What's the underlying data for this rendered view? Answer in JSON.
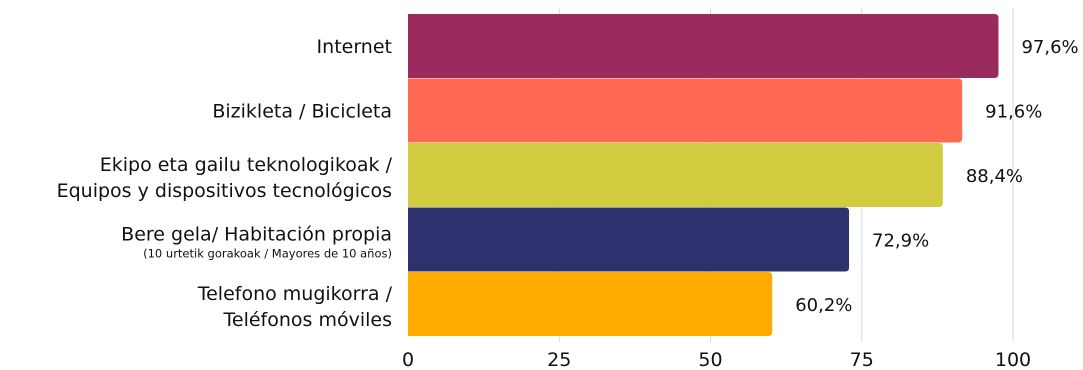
{
  "chart_data": {
    "type": "bar",
    "orientation": "horizontal",
    "categories": [
      [
        "Internet"
      ],
      [
        "Bizikleta / Bicicleta"
      ],
      [
        "Ekipo eta gailu teknologikoak /",
        "Equipos y dispositivos tecnológicos"
      ],
      [
        "Bere gela/ Habitación propia"
      ],
      [
        "Telefono mugikorra /",
        "Teléfonos móviles"
      ]
    ],
    "sublabels": [
      "",
      "",
      "",
      "(10 urtetik gorakoak / Mayores de 10 años)",
      ""
    ],
    "values": [
      97.6,
      91.6,
      88.4,
      72.9,
      60.2
    ],
    "value_labels": [
      "97,6%",
      "91,6%",
      "88,4%",
      "72,9%",
      "60,2%"
    ],
    "colors": [
      "#9b2a5e",
      "#ff6a55",
      "#d1cb40",
      "#2d316e",
      "#ffab00"
    ],
    "xlim": [
      0,
      100
    ],
    "xticks": [
      0,
      25,
      50,
      75,
      100
    ],
    "xtick_labels": [
      "0",
      "25",
      "50",
      "75",
      "100"
    ],
    "grid": true,
    "legend": "none",
    "title": "",
    "xlabel": "",
    "ylabel": ""
  }
}
